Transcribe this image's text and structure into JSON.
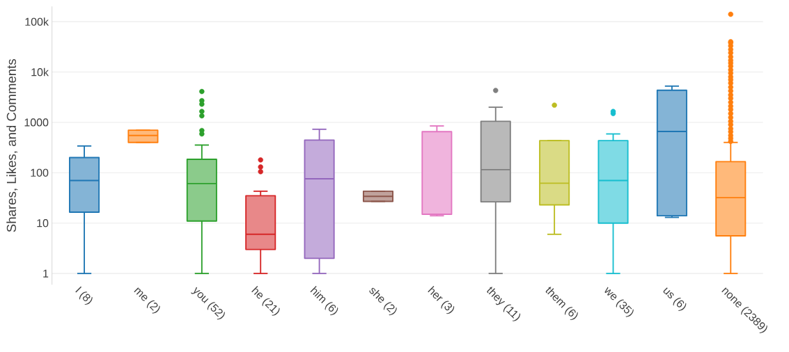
{
  "chart_data": {
    "type": "box",
    "ylabel": "Shares, Likes, and Comments",
    "categories": [
      "I (8)",
      "me (2)",
      "you (52)",
      "he (21)",
      "him (6)",
      "she (2)",
      "her (3)",
      "they (11)",
      "them (6)",
      "we (35)",
      "us (6)",
      "none (2389)"
    ],
    "colors": [
      "#1f77b4",
      "#ff7f0e",
      "#2ca02c",
      "#d62728",
      "#9467bd",
      "#8c564b",
      "#e377c2",
      "#7f7f7f",
      "#bcbd22",
      "#17becf",
      "#1f77b4",
      "#ff7f0e"
    ],
    "boxes": [
      {
        "low": 1,
        "q1": 16.5,
        "median": 70,
        "q3": 200,
        "high": 340
      },
      {
        "low": 400,
        "q1": 400,
        "median": 550,
        "q3": 700,
        "high": 700
      },
      {
        "low": 1,
        "q1": 11,
        "median": 61,
        "q3": 185,
        "high": 355,
        "outliers": [
          4100,
          2700,
          2300,
          1650,
          1350,
          690,
          590
        ]
      },
      {
        "low": 1,
        "q1": 3,
        "median": 6,
        "q3": 35,
        "high": 43,
        "outliers": [
          180,
          130,
          105
        ]
      },
      {
        "low": 1,
        "q1": 2,
        "median": 76,
        "q3": 445,
        "high": 730
      },
      {
        "low": 27,
        "q1": 27,
        "median": 34,
        "q3": 43,
        "high": 43
      },
      {
        "low": 14,
        "q1": 15,
        "median": 15,
        "q3": 655,
        "high": 850
      },
      {
        "low": 1,
        "q1": 26.5,
        "median": 115,
        "q3": 1050,
        "high": 2000,
        "outliers": [
          4300
        ]
      },
      {
        "low": 6,
        "q1": 23,
        "median": 62,
        "q3": 435,
        "high": 435,
        "outliers": [
          2200
        ]
      },
      {
        "low": 1,
        "q1": 10,
        "median": 70,
        "q3": 435,
        "high": 590,
        "outliers": [
          1500,
          1650
        ]
      },
      {
        "low": 13,
        "q1": 14,
        "median": 660,
        "q3": 4350,
        "high": 5250
      },
      {
        "low": 1,
        "q1": 5.6,
        "median": 32,
        "q3": 166,
        "high": 400,
        "outliers": [
          420,
          480,
          550,
          650,
          750,
          900,
          1050,
          1250,
          1500,
          1800,
          2100,
          2500,
          3000,
          3500,
          4200,
          5000,
          6000,
          7000,
          8000,
          9500,
          11000,
          13000,
          15000,
          17000,
          20000,
          24000,
          28000,
          33000,
          38000,
          40000,
          140000
        ]
      }
    ],
    "ylim": [
      0.6,
      200000
    ],
    "yticks": [
      1,
      10,
      100,
      1000,
      {
        "value": 10000,
        "label": "10k"
      },
      {
        "value": 100000,
        "label": "100k"
      }
    ],
    "log": true,
    "grid": "y",
    "marker": "circle"
  }
}
